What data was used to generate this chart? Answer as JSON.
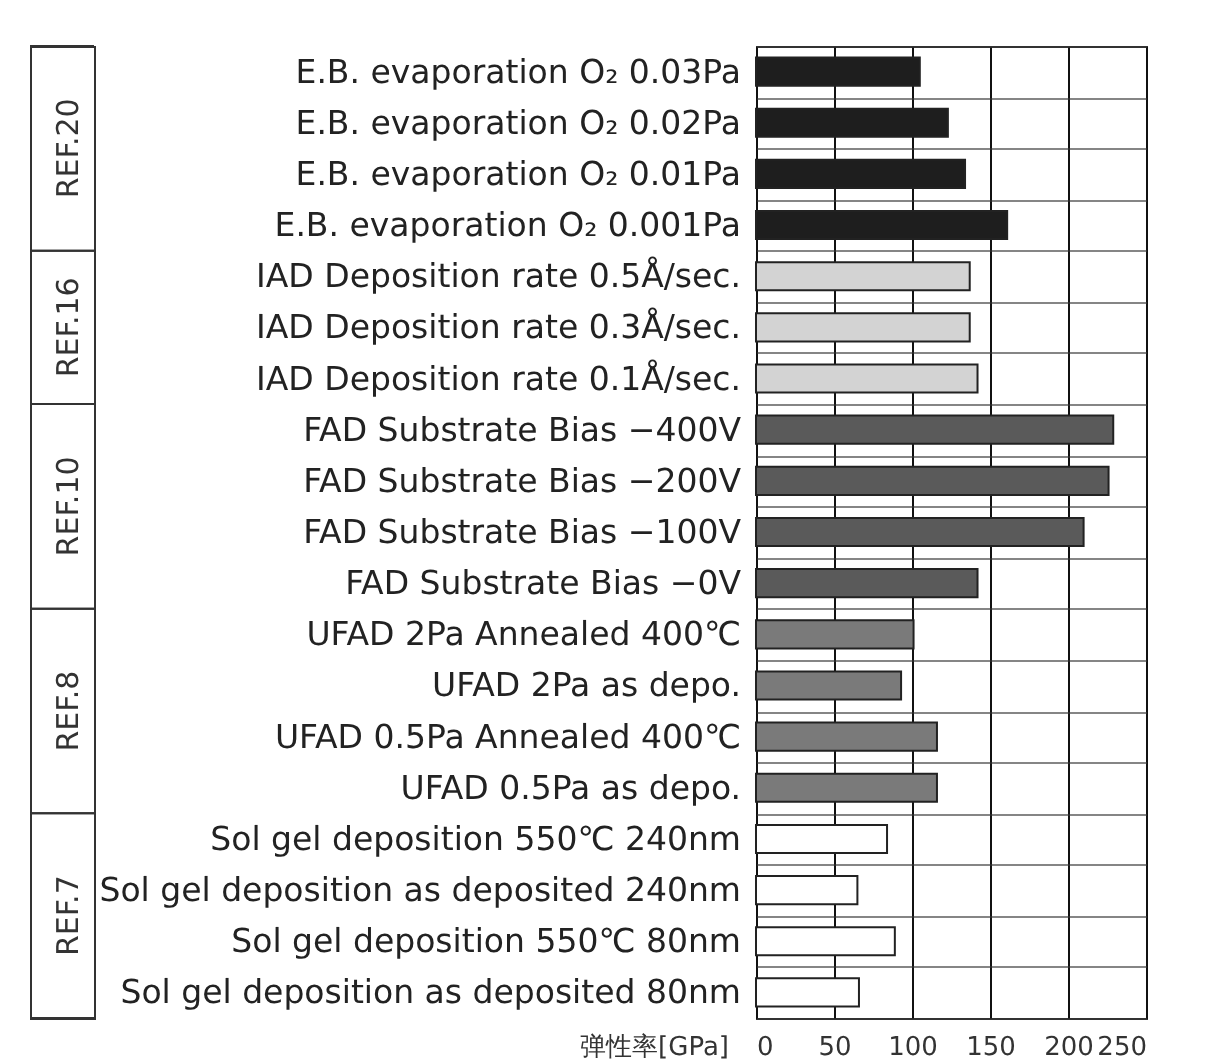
{
  "chart_data": {
    "type": "bar",
    "orientation": "horizontal",
    "xlabel": "弹性率[GPa]",
    "categories": [
      "E.B. evaporation O₂ 0.03Pa",
      "E.B. evaporation O₂ 0.02Pa",
      "E.B. evaporation O₂ 0.01Pa",
      "E.B. evaporation O₂ 0.001Pa",
      "IAD Deposition rate 0.5Å/sec.",
      "IAD Deposition rate 0.3Å/sec.",
      "IAD Deposition rate 0.1Å/sec.",
      "FAD Substrate Bias −400V",
      "FAD Substrate Bias −200V",
      "FAD Substrate Bias −100V",
      "FAD Substrate Bias −0V",
      "UFAD 2Pa Annealed 400℃",
      "UFAD 2Pa as depo.",
      "UFAD 0.5Pa Annealed 400℃",
      "UFAD 0.5Pa as depo.",
      "Sol gel deposition 550℃ 240nm",
      "Sol gel deposition as deposited 240nm",
      "Sol gel deposition 550℃ 80nm",
      "Sol gel deposition as deposited 80nm"
    ],
    "series": [
      {
        "color": "#1e1e1e",
        "values": [
          105,
          123,
          134,
          161,
          null,
          null,
          null,
          null,
          null,
          null,
          null,
          null,
          null,
          null,
          null,
          null,
          null,
          null,
          null
        ]
      },
      {
        "color": "#d3d3d3",
        "values": [
          null,
          null,
          null,
          null,
          137,
          137,
          142,
          null,
          null,
          null,
          null,
          null,
          null,
          null,
          null,
          null,
          null,
          null,
          null
        ]
      },
      {
        "color": "#5a5a5a",
        "values": [
          null,
          null,
          null,
          null,
          null,
          null,
          null,
          229,
          226,
          210,
          142,
          null,
          null,
          null,
          null,
          null,
          null,
          null,
          null
        ]
      },
      {
        "color": "#7a7a7a",
        "values": [
          null,
          null,
          null,
          null,
          null,
          null,
          null,
          null,
          null,
          null,
          null,
          101,
          93,
          116,
          116,
          null,
          null,
          null,
          null
        ]
      },
      {
        "color": "#ffffff",
        "values": [
          null,
          null,
          null,
          null,
          null,
          null,
          null,
          null,
          null,
          null,
          null,
          null,
          null,
          null,
          null,
          84,
          65,
          89,
          66
        ]
      }
    ],
    "annotations": [
      "REF.20",
      "REF.16",
      "REF.10",
      "REF.8",
      "REF.7"
    ],
    "xlim": [
      0,
      250
    ],
    "xticks": [
      0,
      50,
      100,
      150,
      200,
      250
    ],
    "grid": true,
    "legend": false
  }
}
